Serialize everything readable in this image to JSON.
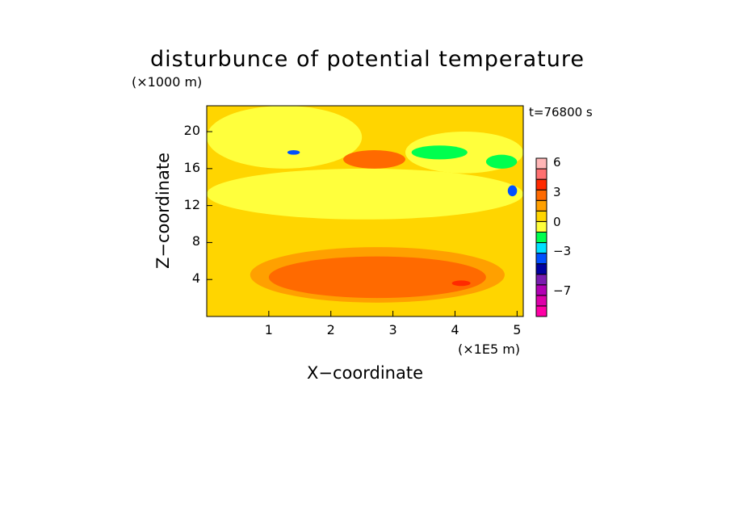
{
  "chart_data": {
    "type": "heatmap",
    "title": "disturbunce of potential temperature",
    "time_label": "t=76800 s",
    "xlabel": "X−coordinate",
    "ylabel": "Z−coordinate",
    "x_unit": "(×1E5 m)",
    "y_unit": "(×1000 m)",
    "xlim": [
      0,
      5.1
    ],
    "ylim": [
      0,
      22.8
    ],
    "x_ticks": [
      1,
      2,
      3,
      4,
      5
    ],
    "y_ticks": [
      4,
      8,
      12,
      16,
      20
    ],
    "colorbar": {
      "levels": [
        -9,
        -8,
        -7,
        -6,
        -5,
        -4,
        -3,
        -2,
        -1,
        0,
        1,
        2,
        3,
        4,
        5,
        6,
        7
      ],
      "colors": [
        "#ff00a6",
        "#dd00aa",
        "#b200b4",
        "#7a1cb0",
        "#0000a0",
        "#0050ff",
        "#00e0ff",
        "#00ff4e",
        "#ffff3c",
        "#ffd500",
        "#ffa000",
        "#ff6a00",
        "#ff2a00",
        "#ff7070",
        "#ffb6b6"
      ],
      "tick_labels": [
        "6",
        "3",
        "0",
        "−3",
        "−7"
      ],
      "tick_values": [
        6,
        3,
        0,
        -3,
        -7
      ]
    },
    "regions": [
      {
        "x": [
          0.0,
          5.1
        ],
        "z": [
          0.0,
          22.8
        ],
        "value": 0.5
      },
      {
        "x": [
          0.7,
          4.8
        ],
        "z": [
          1.5,
          7.5
        ],
        "value": 1.5
      },
      {
        "x": [
          1.0,
          4.5
        ],
        "z": [
          2.0,
          6.5
        ],
        "value": 2.0
      },
      {
        "x": [
          0.0,
          5.1
        ],
        "z": [
          10.5,
          16.0
        ],
        "value": -0.5
      },
      {
        "x": [
          0.0,
          2.5
        ],
        "z": [
          16.0,
          22.8
        ],
        "value": -0.5
      },
      {
        "x": [
          3.2,
          5.1
        ],
        "z": [
          15.5,
          20.0
        ],
        "value": -0.5
      },
      {
        "x": [
          3.3,
          4.2
        ],
        "z": [
          17.0,
          18.5
        ],
        "value": -1.5
      },
      {
        "x": [
          4.5,
          5.0
        ],
        "z": [
          16.0,
          17.5
        ],
        "value": -1.5
      },
      {
        "x": [
          2.2,
          3.2
        ],
        "z": [
          16.0,
          18.0
        ],
        "value": 2.0
      },
      {
        "x": [
          1.3,
          1.5
        ],
        "z": [
          17.5,
          18.0
        ],
        "value": -3.5
      },
      {
        "x": [
          4.85,
          5.0
        ],
        "z": [
          13.0,
          14.2
        ],
        "value": -3.5
      },
      {
        "x": [
          3.95,
          4.25
        ],
        "z": [
          3.3,
          3.9
        ],
        "value": 3.5
      }
    ]
  }
}
